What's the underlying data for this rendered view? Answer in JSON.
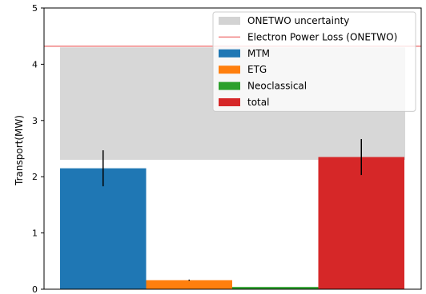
{
  "chart_data": {
    "type": "bar",
    "title": "",
    "xlabel": "",
    "ylabel": "Transport(MW)",
    "ylim": [
      0,
      5
    ],
    "yticks": [
      "0",
      "1",
      "2",
      "3",
      "4",
      "5"
    ],
    "uncertainty_band": {
      "name": "ONETWO uncertainty",
      "low": 2.3,
      "high": 4.3,
      "color": "#d3d3d3"
    },
    "reference_line": {
      "name": "Electron Power Loss (ONETWO)",
      "value": 4.32,
      "color": "#f08080"
    },
    "series": [
      {
        "name": "MTM",
        "value": 2.15,
        "error": 0.32,
        "color": "#1f77b4"
      },
      {
        "name": "ETG",
        "value": 0.16,
        "error": 0.01,
        "color": "#ff7f0e"
      },
      {
        "name": "Neoclassical",
        "value": 0.04,
        "error": 0.0,
        "color": "#2ca02c"
      },
      {
        "name": "total",
        "value": 2.35,
        "error": 0.32,
        "color": "#d62728"
      }
    ],
    "grid": false,
    "legend_position": "top-right"
  }
}
